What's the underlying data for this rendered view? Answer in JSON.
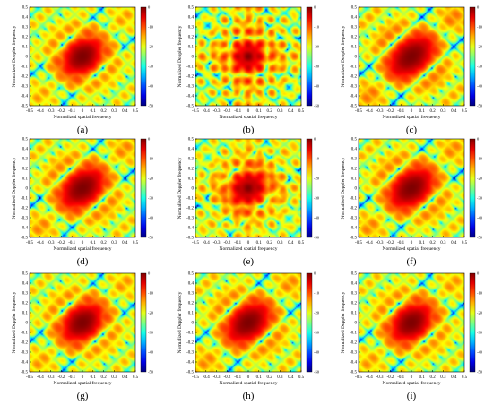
{
  "figure": {
    "axis_labels": {
      "x": "Normalized spatial frequency",
      "y": "Normalized Doppler frequency"
    },
    "x_ticks": [
      "-0.5",
      "-0.4",
      "-0.3",
      "-0.2",
      "-0.1",
      "0",
      "0.1",
      "0.2",
      "0.3",
      "0.4",
      "0.5"
    ],
    "y_ticks": [
      "0.5",
      "0.4",
      "0.3",
      "0.2",
      "0.1",
      "0",
      "-0.1",
      "-0.2",
      "-0.3",
      "-0.4",
      "-0.5"
    ],
    "colorbar_ticks": [
      "0",
      "-10",
      "-20",
      "-30",
      "-40",
      "-50"
    ],
    "colormap": [
      "#00007f",
      "#0000ff",
      "#007fff",
      "#00ffff",
      "#7fff7f",
      "#ffff00",
      "#ff7f00",
      "#ff0000",
      "#7f0000"
    ]
  },
  "chart_data": [
    {
      "type": "heatmap",
      "caption": "(a)",
      "xlim": [
        -0.5,
        0.5
      ],
      "ylim": [
        -0.5,
        0.5
      ],
      "zlim": [
        -50,
        0
      ],
      "peak": [
        0,
        0
      ]
    },
    {
      "type": "heatmap",
      "caption": "(b)",
      "xlim": [
        -0.5,
        0.5
      ],
      "ylim": [
        -0.5,
        0.5
      ],
      "zlim": [
        -50,
        0
      ],
      "peak": [
        0,
        0
      ]
    },
    {
      "type": "heatmap",
      "caption": "(c)",
      "xlim": [
        -0.5,
        0.5
      ],
      "ylim": [
        -0.5,
        0.5
      ],
      "zlim": [
        -50,
        0
      ],
      "peak": [
        0,
        0
      ]
    },
    {
      "type": "heatmap",
      "caption": "(d)",
      "xlim": [
        -0.5,
        0.5
      ],
      "ylim": [
        -0.5,
        0.5
      ],
      "zlim": [
        -50,
        0
      ],
      "peak": [
        0,
        0
      ]
    },
    {
      "type": "heatmap",
      "caption": "(e)",
      "xlim": [
        -0.5,
        0.5
      ],
      "ylim": [
        -0.5,
        0.5
      ],
      "zlim": [
        -50,
        0
      ],
      "peak": [
        0,
        0
      ]
    },
    {
      "type": "heatmap",
      "caption": "(f)",
      "xlim": [
        -0.5,
        0.5
      ],
      "ylim": [
        -0.5,
        0.5
      ],
      "zlim": [
        -50,
        0
      ],
      "peak": [
        0,
        0
      ]
    },
    {
      "type": "heatmap",
      "caption": "(g)",
      "xlim": [
        -0.5,
        0.5
      ],
      "ylim": [
        -0.5,
        0.5
      ],
      "zlim": [
        -50,
        0
      ],
      "peak": [
        0,
        0
      ]
    },
    {
      "type": "heatmap",
      "caption": "(h)",
      "xlim": [
        -0.5,
        0.5
      ],
      "ylim": [
        -0.5,
        0.5
      ],
      "zlim": [
        -50,
        0
      ],
      "peak": [
        0,
        0
      ]
    },
    {
      "type": "heatmap",
      "caption": "(i)",
      "xlim": [
        -0.5,
        0.5
      ],
      "ylim": [
        -0.5,
        0.5
      ],
      "zlim": [
        -50,
        0
      ],
      "peak": [
        0,
        0
      ]
    }
  ]
}
